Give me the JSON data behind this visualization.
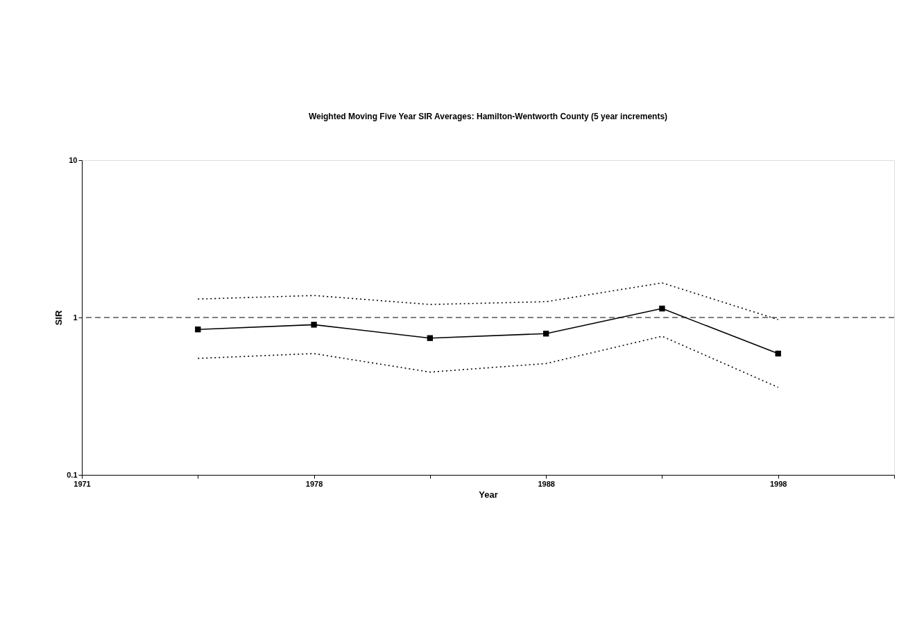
{
  "chart_data": {
    "type": "line",
    "title": "Weighted Moving Five Year SIR Averages: Hamilton-Wentworth County (5 year increments)",
    "xlabel": "Year",
    "ylabel": "SIR",
    "categories": [
      "1971",
      null,
      "1978",
      null,
      "1988",
      null,
      "1998",
      null
    ],
    "series": [
      {
        "color": "#000000",
        "marker": "square",
        "line_style": "solid",
        "values": [
          null,
          0.84,
          0.9,
          0.74,
          0.79,
          1.14,
          0.59,
          null
        ]
      },
      {
        "color": "#000000",
        "marker": "none",
        "line_style": "dotted",
        "values": [
          null,
          1.31,
          1.38,
          1.21,
          1.26,
          1.66,
          0.97,
          null
        ]
      },
      {
        "color": "#000000",
        "marker": "none",
        "line_style": "dotted",
        "values": [
          null,
          0.55,
          0.59,
          0.45,
          0.51,
          0.76,
          0.36,
          null
        ]
      }
    ],
    "log": "y",
    "ylim": [
      0.1,
      10
    ],
    "yticks": [
      0.1,
      1,
      10
    ],
    "ref_lines": [
      {
        "axis": "y",
        "value": 1,
        "line_style": "dashed",
        "color": "#000000"
      }
    ],
    "grid": false
  }
}
